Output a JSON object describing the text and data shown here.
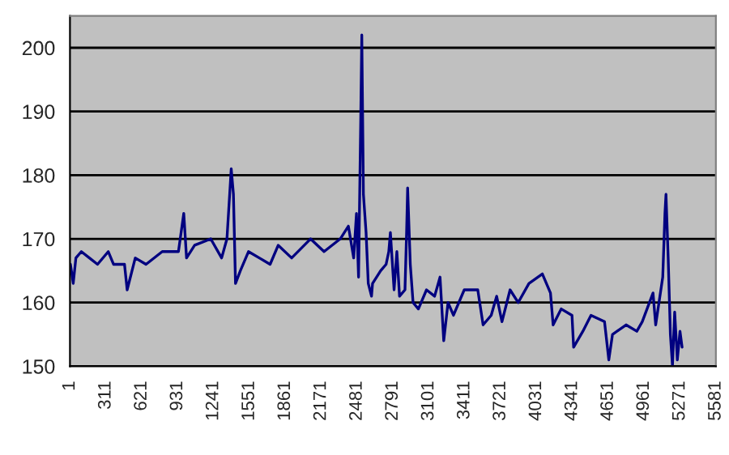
{
  "chart_data": {
    "type": "line",
    "x": [
      5,
      29,
      52,
      99,
      169,
      239,
      332,
      378,
      472,
      495,
      565,
      658,
      798,
      938,
      984,
      1008,
      1078,
      1217,
      1311,
      1357,
      1394,
      1413,
      1431,
      1473,
      1543,
      1637,
      1730,
      1800,
      1916,
      2079,
      2196,
      2336,
      2406,
      2452,
      2476,
      2494,
      2513,
      2522,
      2536,
      2559,
      2578,
      2606,
      2615,
      2685,
      2732,
      2755,
      2769,
      2801,
      2825,
      2848,
      2895,
      2909,
      2918,
      2941,
      2965,
      3011,
      3081,
      3151,
      3198,
      3230,
      3267,
      3314,
      3407,
      3524,
      3570,
      3640,
      3687,
      3733,
      3803,
      3873,
      3966,
      4082,
      4152,
      4175,
      4245,
      4338,
      4352,
      4432,
      4502,
      4619,
      4656,
      4688,
      4805,
      4898,
      4945,
      5038,
      5061,
      5122,
      5141,
      5150,
      5169,
      5188,
      5206,
      5225,
      5248,
      5271,
      5289
    ],
    "series": [
      {
        "color": "#000080",
        "values": [
          166,
          163,
          167,
          168,
          167,
          166,
          168,
          166,
          166,
          162,
          167,
          166,
          168,
          168,
          174,
          167,
          169,
          170,
          167,
          170,
          181,
          177,
          163,
          165,
          168,
          167,
          166,
          169,
          167,
          170,
          168,
          170,
          172,
          167,
          174,
          164,
          189,
          202,
          177,
          171,
          163,
          161,
          163,
          165,
          166,
          168,
          171,
          162,
          168,
          161,
          162,
          171,
          178,
          166,
          160,
          159,
          162,
          161,
          164,
          154,
          160,
          158,
          162,
          162,
          156.5,
          158,
          161,
          157,
          162,
          160,
          163,
          164.5,
          161.5,
          156.5,
          159,
          158,
          153,
          155.5,
          158,
          157,
          151,
          155,
          156.5,
          155.5,
          157,
          161.5,
          156.5,
          164,
          174,
          177,
          167,
          155,
          150.1,
          158.5,
          151,
          155.5,
          153
        ]
      }
    ],
    "xlim": [
      1,
      5581
    ],
    "xticks": [
      1,
      311,
      621,
      931,
      1241,
      1551,
      1861,
      2171,
      2481,
      2791,
      3101,
      3411,
      3721,
      4031,
      4341,
      4651,
      4961,
      5271,
      5581
    ],
    "ylim": [
      150,
      205
    ],
    "yticks": [
      150,
      160,
      170,
      180,
      190,
      200
    ],
    "grid": "y",
    "marker": "none",
    "line_style": "solid"
  }
}
